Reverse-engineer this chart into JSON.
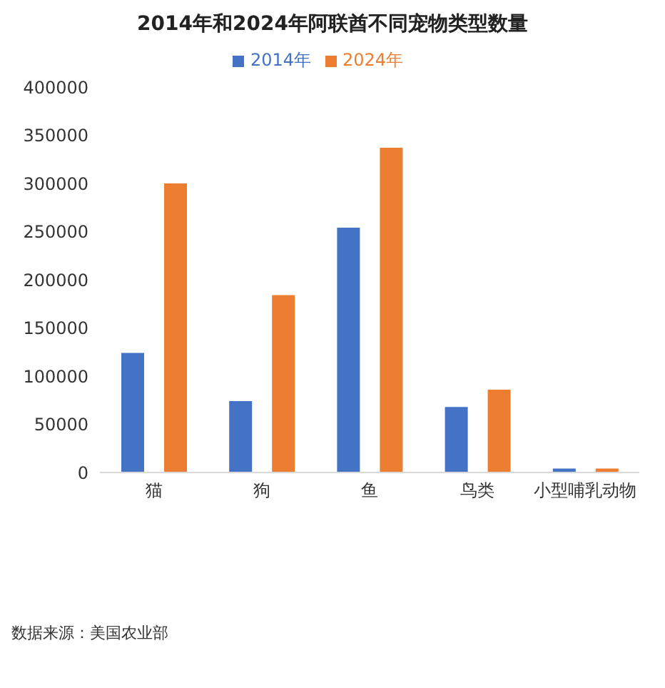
{
  "chart_data": {
    "type": "bar",
    "title": "2014年和2024年阿联酋不同宠物类型数量",
    "categories": [
      "猫",
      "狗",
      "鱼",
      "鸟类",
      "小型哺乳动物"
    ],
    "series": [
      {
        "name": "2014年",
        "color": "#4472c4",
        "values": [
          124000,
          74000,
          254000,
          68000,
          4000
        ]
      },
      {
        "name": "2024年",
        "color": "#ed7d31",
        "values": [
          300000,
          184000,
          337000,
          86000,
          4000
        ]
      }
    ],
    "ylim": [
      0,
      400000
    ],
    "yticks": [
      0,
      50000,
      100000,
      150000,
      200000,
      250000,
      300000,
      350000,
      400000
    ],
    "grid": false,
    "legend": "top",
    "annotations": [
      "数据来源：美国农业部"
    ]
  }
}
